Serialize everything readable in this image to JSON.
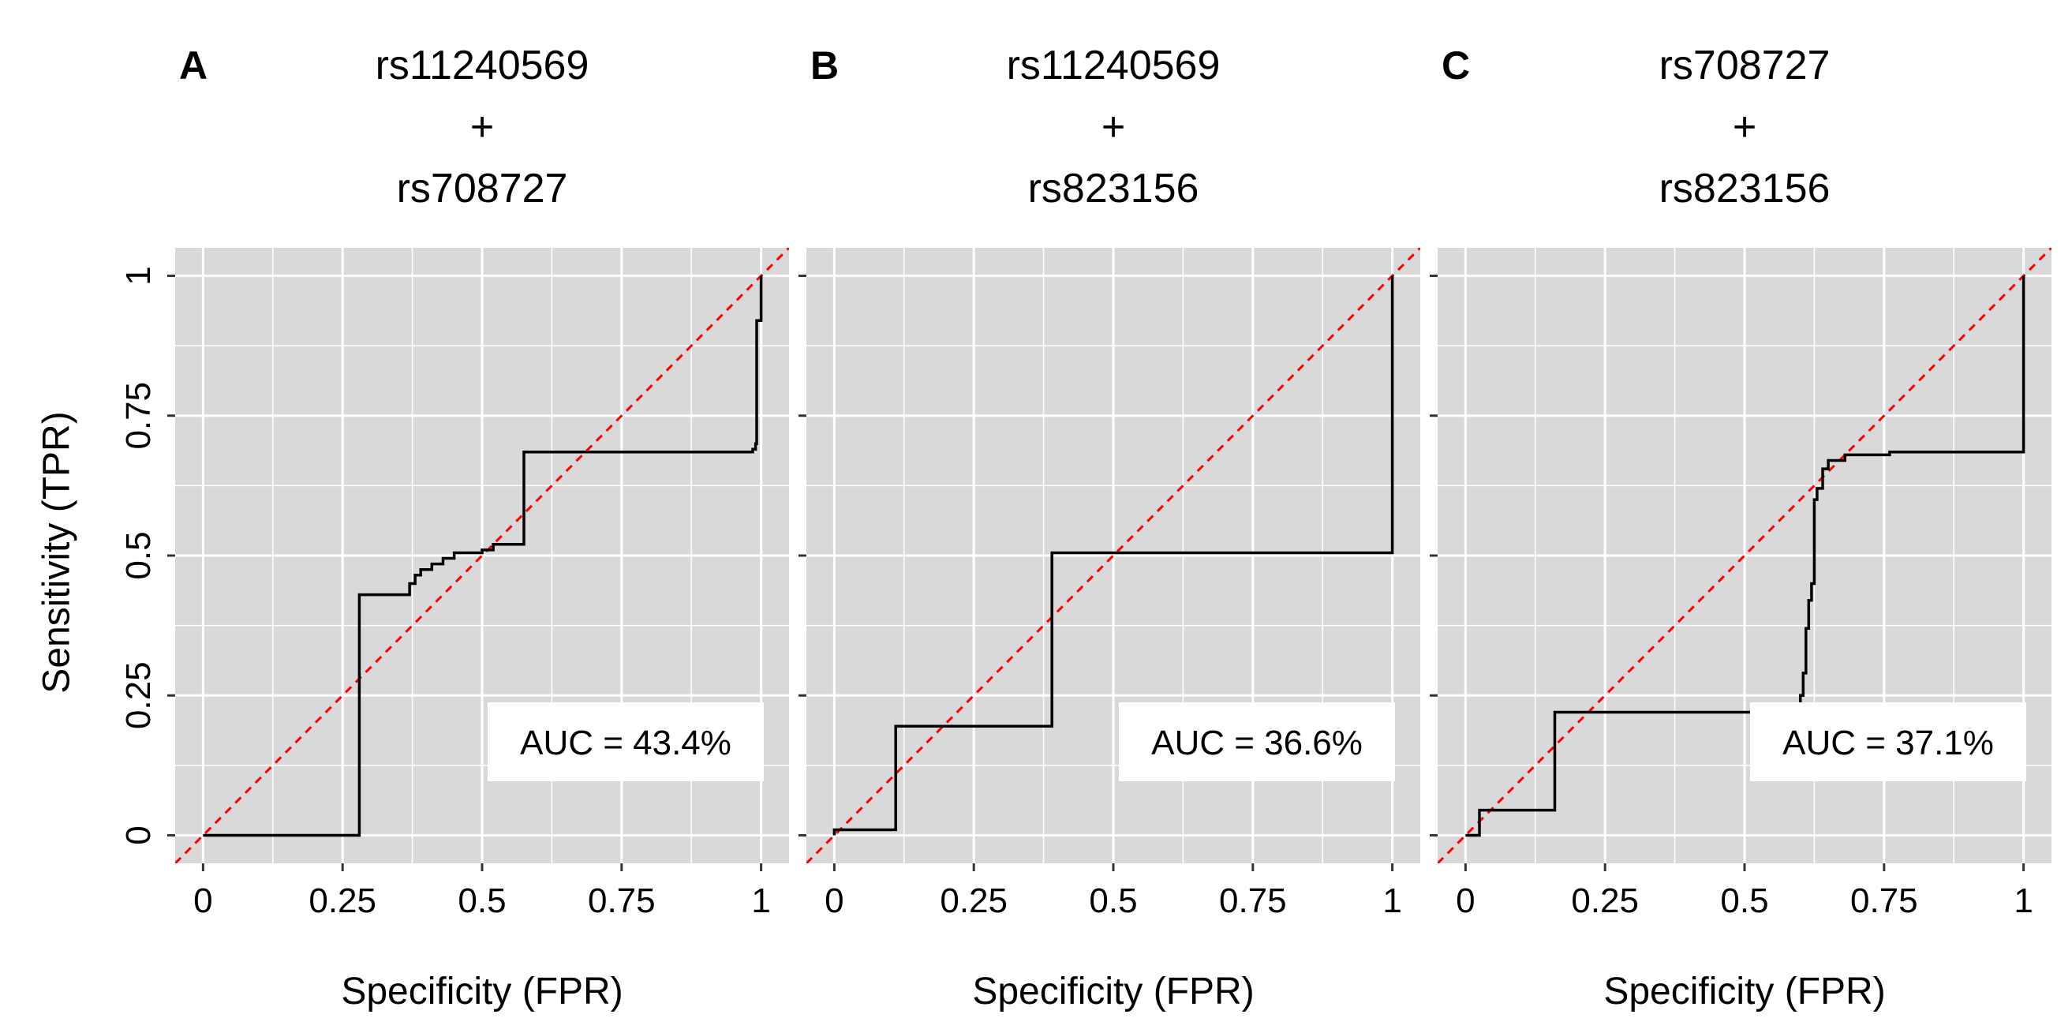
{
  "figure": {
    "y_axis_label": "Sensitivity (TPR)",
    "x_axis_label": "Specificity (FPR)"
  },
  "colors": {
    "panel_background": "#d9d9d9",
    "gridline": "#ffffff",
    "roc_line": "#000000",
    "reference_line": "#ff0000",
    "text": "#000000"
  },
  "chart_data": [
    {
      "type": "line",
      "panel_label": "A",
      "title_lines": [
        "rs11240569",
        "+",
        "rs708727"
      ],
      "xlabel": "Specificity (FPR)",
      "ylabel": "Sensitivity (TPR)",
      "xlim": [
        -0.05,
        1.05
      ],
      "ylim": [
        -0.05,
        1.05
      ],
      "x_ticks": [
        0,
        0.25,
        0.5,
        0.75,
        1
      ],
      "x_tick_labels": [
        "0",
        "0.25",
        "0.5",
        "0.75",
        "1"
      ],
      "y_ticks": [
        0,
        0.25,
        0.5,
        0.75,
        1
      ],
      "y_tick_labels": [
        "0",
        "0.25",
        "0.5",
        "0.75",
        "1"
      ],
      "annotation": "AUC = 43.4%",
      "reference_line": [
        [
          -0.05,
          -0.05
        ],
        [
          1.05,
          1.05
        ]
      ],
      "series": [
        {
          "name": "ROC",
          "points": [
            [
              0,
              0
            ],
            [
              0.28,
              0
            ],
            [
              0.28,
              0.43
            ],
            [
              0.37,
              0.43
            ],
            [
              0.37,
              0.45
            ],
            [
              0.38,
              0.45
            ],
            [
              0.38,
              0.465
            ],
            [
              0.39,
              0.465
            ],
            [
              0.39,
              0.475
            ],
            [
              0.41,
              0.475
            ],
            [
              0.41,
              0.485
            ],
            [
              0.43,
              0.485
            ],
            [
              0.43,
              0.495
            ],
            [
              0.45,
              0.495
            ],
            [
              0.45,
              0.505
            ],
            [
              0.5,
              0.505
            ],
            [
              0.5,
              0.51
            ],
            [
              0.52,
              0.51
            ],
            [
              0.52,
              0.52
            ],
            [
              0.575,
              0.52
            ],
            [
              0.575,
              0.685
            ],
            [
              0.985,
              0.685
            ],
            [
              0.985,
              0.69
            ],
            [
              0.99,
              0.69
            ],
            [
              0.99,
              0.7
            ],
            [
              0.992,
              0.7
            ],
            [
              0.992,
              0.92
            ],
            [
              1,
              0.92
            ],
            [
              1,
              1
            ]
          ]
        }
      ]
    },
    {
      "type": "line",
      "panel_label": "B",
      "title_lines": [
        "rs11240569",
        "+",
        "rs823156"
      ],
      "xlabel": "Specificity (FPR)",
      "ylabel": "Sensitivity (TPR)",
      "xlim": [
        -0.05,
        1.05
      ],
      "ylim": [
        -0.05,
        1.05
      ],
      "x_ticks": [
        0,
        0.25,
        0.5,
        0.75,
        1
      ],
      "x_tick_labels": [
        "0",
        "0.25",
        "0.5",
        "0.75",
        "1"
      ],
      "y_ticks": [
        0,
        0.25,
        0.5,
        0.75,
        1
      ],
      "y_tick_labels": [
        "0",
        "0.25",
        "0.5",
        "0.75",
        "1"
      ],
      "annotation": "AUC = 36.6%",
      "reference_line": [
        [
          -0.05,
          -0.05
        ],
        [
          1.05,
          1.05
        ]
      ],
      "series": [
        {
          "name": "ROC",
          "points": [
            [
              0,
              0
            ],
            [
              0,
              0.01
            ],
            [
              0.11,
              0.01
            ],
            [
              0.11,
              0.195
            ],
            [
              0.39,
              0.195
            ],
            [
              0.39,
              0.505
            ],
            [
              1,
              0.505
            ],
            [
              1,
              1
            ]
          ]
        }
      ]
    },
    {
      "type": "line",
      "panel_label": "C",
      "title_lines": [
        "rs708727",
        "+",
        "rs823156"
      ],
      "xlabel": "Specificity (FPR)",
      "ylabel": "Sensitivity (TPR)",
      "xlim": [
        -0.05,
        1.05
      ],
      "ylim": [
        -0.05,
        1.05
      ],
      "x_ticks": [
        0,
        0.25,
        0.5,
        0.75,
        1
      ],
      "x_tick_labels": [
        "0",
        "0.25",
        "0.5",
        "0.75",
        "1"
      ],
      "y_ticks": [
        0,
        0.25,
        0.5,
        0.75,
        1
      ],
      "y_tick_labels": [
        "0",
        "0.25",
        "0.5",
        "0.75",
        "1"
      ],
      "annotation": "AUC = 37.1%",
      "reference_line": [
        [
          -0.05,
          -0.05
        ],
        [
          1.05,
          1.05
        ]
      ],
      "series": [
        {
          "name": "ROC",
          "points": [
            [
              0,
              0
            ],
            [
              0.025,
              0
            ],
            [
              0.025,
              0.045
            ],
            [
              0.16,
              0.045
            ],
            [
              0.16,
              0.22
            ],
            [
              0.6,
              0.22
            ],
            [
              0.6,
              0.25
            ],
            [
              0.605,
              0.25
            ],
            [
              0.605,
              0.29
            ],
            [
              0.61,
              0.29
            ],
            [
              0.61,
              0.37
            ],
            [
              0.615,
              0.37
            ],
            [
              0.615,
              0.42
            ],
            [
              0.62,
              0.42
            ],
            [
              0.62,
              0.45
            ],
            [
              0.625,
              0.45
            ],
            [
              0.625,
              0.6
            ],
            [
              0.63,
              0.6
            ],
            [
              0.63,
              0.62
            ],
            [
              0.64,
              0.62
            ],
            [
              0.64,
              0.655
            ],
            [
              0.65,
              0.655
            ],
            [
              0.65,
              0.67
            ],
            [
              0.68,
              0.67
            ],
            [
              0.68,
              0.68
            ],
            [
              0.76,
              0.68
            ],
            [
              0.76,
              0.685
            ],
            [
              1,
              0.685
            ],
            [
              1,
              1
            ]
          ]
        }
      ]
    }
  ]
}
